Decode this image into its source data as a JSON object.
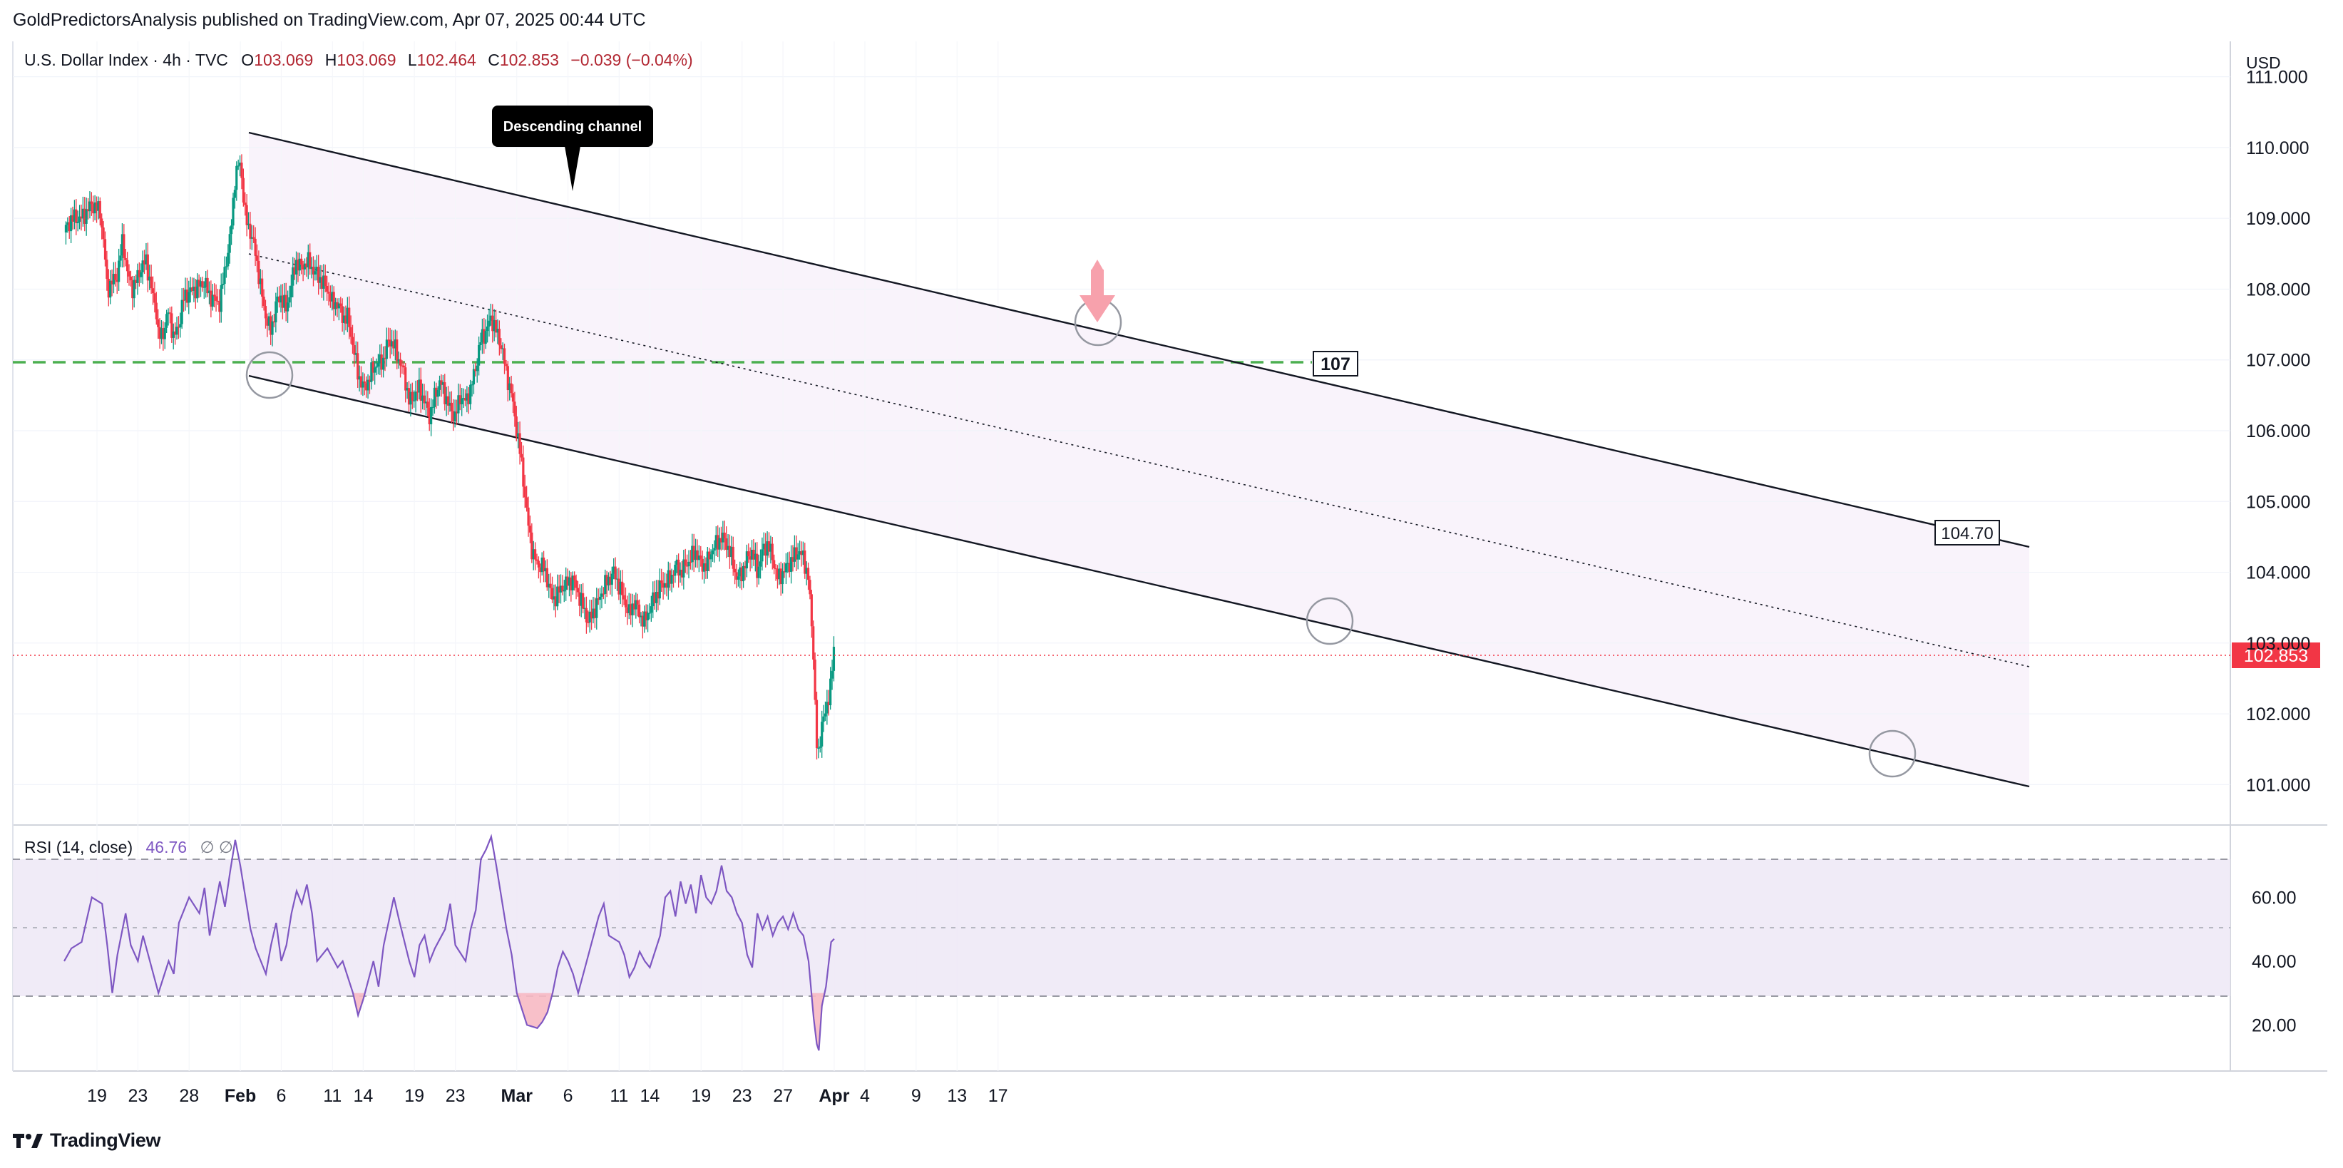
{
  "header": {
    "published": "GoldPredictorsAnalysis published on TradingView.com, Apr 07, 2025 00:44 UTC"
  },
  "legend": {
    "symbol": "U.S. Dollar Index · 4h · TVC",
    "open_label": "O",
    "open": "103.069",
    "high_label": "H",
    "high": "103.069",
    "low_label": "L",
    "low": "102.464",
    "close_label": "C",
    "close": "102.853",
    "change": "−0.039 (−0.04%)"
  },
  "currency": "USD",
  "footer": {
    "brand": "TradingView"
  },
  "colors": {
    "up": "#089981",
    "down": "#f23645",
    "channel": "#131722",
    "support": "#4caf50",
    "rsi_line": "#7e57c2",
    "rsi_band": "#ede7f6",
    "price_marker": "#f23645"
  },
  "icons": {
    "arrow": "down-arrow-icon",
    "logo": "tradingview-logo-icon"
  },
  "chart_data": [
    {
      "type": "candlestick",
      "title": "U.S. Dollar Index",
      "timeframe": "4h",
      "ylim": [
        100.5,
        111.5
      ],
      "x_ticks": [
        "19",
        "23",
        "28",
        "Feb",
        "6",
        "11",
        "14",
        "19",
        "23",
        "Mar",
        "6",
        "11",
        "14",
        "19",
        "23",
        "27",
        "Apr",
        "4",
        "9",
        "13",
        "17"
      ],
      "x_tick_days": [
        0,
        4,
        9,
        14,
        18,
        23,
        26,
        31,
        35,
        41,
        46,
        51,
        54,
        59,
        63,
        67,
        72,
        75,
        80,
        84,
        88
      ],
      "y_ticks": [
        "101.000",
        "102.000",
        "103.000",
        "104.000",
        "105.000",
        "106.000",
        "107.000",
        "108.000",
        "109.000",
        "110.000",
        "111.000"
      ],
      "y_tick_values": [
        101,
        102,
        103,
        104,
        105,
        106,
        107,
        108,
        109,
        110,
        111
      ],
      "last_price": 102.853,
      "last_price_label": "102.853",
      "close_path": [
        [
          -3.2,
          108.8
        ],
        [
          -2.5,
          109.0
        ],
        [
          -1.5,
          109.0
        ],
        [
          -0.5,
          109.2
        ],
        [
          0.3,
          109.1
        ],
        [
          0.7,
          108.6
        ],
        [
          1.0,
          108.0
        ],
        [
          2.0,
          108.2
        ],
        [
          2.5,
          108.7
        ],
        [
          3.0,
          108.2
        ],
        [
          3.5,
          108.0
        ],
        [
          4.3,
          108.3
        ],
        [
          4.8,
          108.4
        ],
        [
          5.3,
          108.0
        ],
        [
          5.8,
          107.7
        ],
        [
          6.0,
          107.3
        ],
        [
          6.5,
          107.4
        ],
        [
          7.0,
          107.7
        ],
        [
          7.5,
          107.3
        ],
        [
          8.0,
          107.5
        ],
        [
          8.5,
          107.9
        ],
        [
          9.5,
          108.0
        ],
        [
          10.5,
          108.1
        ],
        [
          11.0,
          107.9
        ],
        [
          12.0,
          107.8
        ],
        [
          12.5,
          108.3
        ],
        [
          13.0,
          108.7
        ],
        [
          13.5,
          109.6
        ],
        [
          14.0,
          109.8
        ],
        [
          14.5,
          109.0
        ],
        [
          15.0,
          108.8
        ],
        [
          15.5,
          108.5
        ],
        [
          16.0,
          108.0
        ],
        [
          16.5,
          107.6
        ],
        [
          17.0,
          107.4
        ],
        [
          17.5,
          107.8
        ],
        [
          18.0,
          107.9
        ],
        [
          18.5,
          107.7
        ],
        [
          19.0,
          108.1
        ],
        [
          19.5,
          108.4
        ],
        [
          20.0,
          108.3
        ],
        [
          20.5,
          108.4
        ],
        [
          21.5,
          108.2
        ],
        [
          22.5,
          108.0
        ],
        [
          23.0,
          107.8
        ],
        [
          23.5,
          107.8
        ],
        [
          24.0,
          107.6
        ],
        [
          24.5,
          107.6
        ],
        [
          25.0,
          107.2
        ],
        [
          25.5,
          106.8
        ],
        [
          26.0,
          106.6
        ],
        [
          26.5,
          106.7
        ],
        [
          27.0,
          106.9
        ],
        [
          28.0,
          107.0
        ],
        [
          28.5,
          107.3
        ],
        [
          29.0,
          107.2
        ],
        [
          29.5,
          107.0
        ],
        [
          30.0,
          106.8
        ],
        [
          30.5,
          106.4
        ],
        [
          31.0,
          106.5
        ],
        [
          31.5,
          106.6
        ],
        [
          32.0,
          106.4
        ],
        [
          32.5,
          106.2
        ],
        [
          33.0,
          106.5
        ],
        [
          33.5,
          106.7
        ],
        [
          34.0,
          106.5
        ],
        [
          34.5,
          106.3
        ],
        [
          35.0,
          106.2
        ],
        [
          35.5,
          106.5
        ],
        [
          36.0,
          106.4
        ],
        [
          36.5,
          106.6
        ],
        [
          37.0,
          106.9
        ],
        [
          37.5,
          107.3
        ],
        [
          38.0,
          107.4
        ],
        [
          38.5,
          107.6
        ],
        [
          39.0,
          107.4
        ],
        [
          39.5,
          107.2
        ],
        [
          40.0,
          106.8
        ],
        [
          40.5,
          106.5
        ],
        [
          41.0,
          106.0
        ],
        [
          41.5,
          105.5
        ],
        [
          42.0,
          104.8
        ],
        [
          42.5,
          104.3
        ],
        [
          43.0,
          104.1
        ],
        [
          43.5,
          104.1
        ],
        [
          44.0,
          103.9
        ],
        [
          44.5,
          103.6
        ],
        [
          45.5,
          103.8
        ],
        [
          46.5,
          103.9
        ],
        [
          47.0,
          103.7
        ],
        [
          47.5,
          103.5
        ],
        [
          48.0,
          103.3
        ],
        [
          49.0,
          103.6
        ],
        [
          49.5,
          103.8
        ],
        [
          50.5,
          104.0
        ],
        [
          51.0,
          103.8
        ],
        [
          51.5,
          103.6
        ],
        [
          52.0,
          103.4
        ],
        [
          52.5,
          103.6
        ],
        [
          53.0,
          103.4
        ],
        [
          53.5,
          103.3
        ],
        [
          54.0,
          103.5
        ],
        [
          55.0,
          103.8
        ],
        [
          56.0,
          103.9
        ],
        [
          56.5,
          104.1
        ],
        [
          57.0,
          104.0
        ],
        [
          58.0,
          104.2
        ],
        [
          58.5,
          104.3
        ],
        [
          59.0,
          104.1
        ],
        [
          59.5,
          104.1
        ],
        [
          60.0,
          104.3
        ],
        [
          61.0,
          104.5
        ],
        [
          61.5,
          104.4
        ],
        [
          62.0,
          104.2
        ],
        [
          62.5,
          103.9
        ],
        [
          63.0,
          104.0
        ],
        [
          63.5,
          104.2
        ],
        [
          64.0,
          104.3
        ],
        [
          64.5,
          104.0
        ],
        [
          65.0,
          104.3
        ],
        [
          65.5,
          104.4
        ],
        [
          66.0,
          104.2
        ],
        [
          66.5,
          103.9
        ],
        [
          67.0,
          104.0
        ],
        [
          67.5,
          104.1
        ],
        [
          68.0,
          104.2
        ],
        [
          68.5,
          104.3
        ],
        [
          69.0,
          104.2
        ],
        [
          69.5,
          103.9
        ],
        [
          70.0,
          102.8
        ],
        [
          70.2,
          101.8
        ],
        [
          70.4,
          101.3
        ],
        [
          70.8,
          101.9
        ],
        [
          71.2,
          102.0
        ],
        [
          71.7,
          102.5
        ],
        [
          72.0,
          102.9
        ]
      ]
    },
    {
      "type": "line",
      "title": "RSI (14, close)",
      "legend_name": "RSI (14, close)",
      "legend_value": "46.76",
      "legend_extra": "∅ ∅",
      "ylim": [
        6,
        82
      ],
      "upper_band": 70,
      "middle_band": 50,
      "lower_band": 30,
      "y_ticks": [
        "20.00",
        "40.00",
        "60.00"
      ],
      "y_tick_values": [
        20,
        40,
        60
      ],
      "series": [
        {
          "values": [
            [
              -3.2,
              40
            ],
            [
              -2.5,
              44
            ],
            [
              -1.5,
              46
            ],
            [
              -1.0,
              53
            ],
            [
              -0.5,
              60
            ],
            [
              0.5,
              58
            ],
            [
              1.0,
              45
            ],
            [
              1.5,
              30
            ],
            [
              2.0,
              42
            ],
            [
              2.8,
              55
            ],
            [
              3.3,
              45
            ],
            [
              4.0,
              40
            ],
            [
              4.5,
              48
            ],
            [
              5.0,
              42
            ],
            [
              6.0,
              30
            ],
            [
              7.0,
              40
            ],
            [
              7.5,
              36
            ],
            [
              8.0,
              52
            ],
            [
              9.0,
              60
            ],
            [
              10.0,
              55
            ],
            [
              10.5,
              63
            ],
            [
              11.0,
              48
            ],
            [
              12.0,
              65
            ],
            [
              12.5,
              57
            ],
            [
              13.0,
              68
            ],
            [
              13.5,
              78
            ],
            [
              14.0,
              70
            ],
            [
              14.5,
              60
            ],
            [
              15.0,
              50
            ],
            [
              15.5,
              44
            ],
            [
              16.0,
              40
            ],
            [
              16.5,
              36
            ],
            [
              17.0,
              45
            ],
            [
              17.5,
              52
            ],
            [
              18.0,
              40
            ],
            [
              18.5,
              45
            ],
            [
              19.0,
              55
            ],
            [
              19.5,
              62
            ],
            [
              20.0,
              58
            ],
            [
              20.5,
              64
            ],
            [
              21.0,
              55
            ],
            [
              21.5,
              40
            ],
            [
              22.5,
              44
            ],
            [
              23.5,
              38
            ],
            [
              24.0,
              40
            ],
            [
              25.0,
              30
            ],
            [
              25.5,
              23
            ],
            [
              26.0,
              28
            ],
            [
              27.0,
              40
            ],
            [
              27.5,
              32
            ],
            [
              28.0,
              45
            ],
            [
              29.0,
              60
            ],
            [
              29.5,
              53
            ],
            [
              30.5,
              40
            ],
            [
              31.0,
              35
            ],
            [
              31.5,
              45
            ],
            [
              32.0,
              48
            ],
            [
              32.5,
              40
            ],
            [
              33.0,
              44
            ],
            [
              34.0,
              50
            ],
            [
              34.5,
              58
            ],
            [
              35.0,
              45
            ],
            [
              36.0,
              40
            ],
            [
              36.5,
              50
            ],
            [
              37.0,
              56
            ],
            [
              37.5,
              72
            ],
            [
              38.0,
              75
            ],
            [
              38.5,
              79
            ],
            [
              39.0,
              70
            ],
            [
              39.5,
              60
            ],
            [
              40.0,
              50
            ],
            [
              40.5,
              42
            ],
            [
              41.0,
              30
            ],
            [
              41.5,
              25
            ],
            [
              42.0,
              20
            ],
            [
              43.0,
              19
            ],
            [
              43.5,
              21
            ],
            [
              44.0,
              24
            ],
            [
              44.5,
              30
            ],
            [
              45.0,
              38
            ],
            [
              45.5,
              43
            ],
            [
              46.0,
              40
            ],
            [
              46.5,
              36
            ],
            [
              47.0,
              30
            ],
            [
              48.0,
              42
            ],
            [
              49.0,
              54
            ],
            [
              49.5,
              58
            ],
            [
              50.0,
              48
            ],
            [
              51.0,
              46
            ],
            [
              51.5,
              42
            ],
            [
              52.0,
              35
            ],
            [
              52.5,
              38
            ],
            [
              53.0,
              43
            ],
            [
              53.5,
              40
            ],
            [
              54.0,
              38
            ],
            [
              55.0,
              48
            ],
            [
              55.5,
              60
            ],
            [
              56.0,
              62
            ],
            [
              56.5,
              54
            ],
            [
              57.0,
              65
            ],
            [
              57.5,
              58
            ],
            [
              58.0,
              64
            ],
            [
              58.5,
              55
            ],
            [
              59.0,
              67
            ],
            [
              59.5,
              60
            ],
            [
              60.0,
              58
            ],
            [
              60.5,
              62
            ],
            [
              61.0,
              70
            ],
            [
              61.5,
              62
            ],
            [
              62.0,
              60
            ],
            [
              62.5,
              55
            ],
            [
              63.0,
              52
            ],
            [
              63.5,
              42
            ],
            [
              64.0,
              38
            ],
            [
              64.5,
              55
            ],
            [
              65.0,
              50
            ],
            [
              65.5,
              54
            ],
            [
              66.0,
              48
            ],
            [
              66.5,
              52
            ],
            [
              67.0,
              54
            ],
            [
              67.5,
              50
            ],
            [
              68.0,
              55
            ],
            [
              68.5,
              50
            ],
            [
              69.0,
              48
            ],
            [
              69.5,
              40
            ],
            [
              70.0,
              22
            ],
            [
              70.3,
              14
            ],
            [
              70.5,
              12
            ],
            [
              70.8,
              26
            ],
            [
              71.2,
              32
            ],
            [
              71.7,
              46
            ],
            [
              72.0,
              47
            ]
          ]
        }
      ]
    }
  ],
  "annotations": {
    "callout": "Descending channel",
    "support_label": "107",
    "channel_label": "104.70"
  }
}
